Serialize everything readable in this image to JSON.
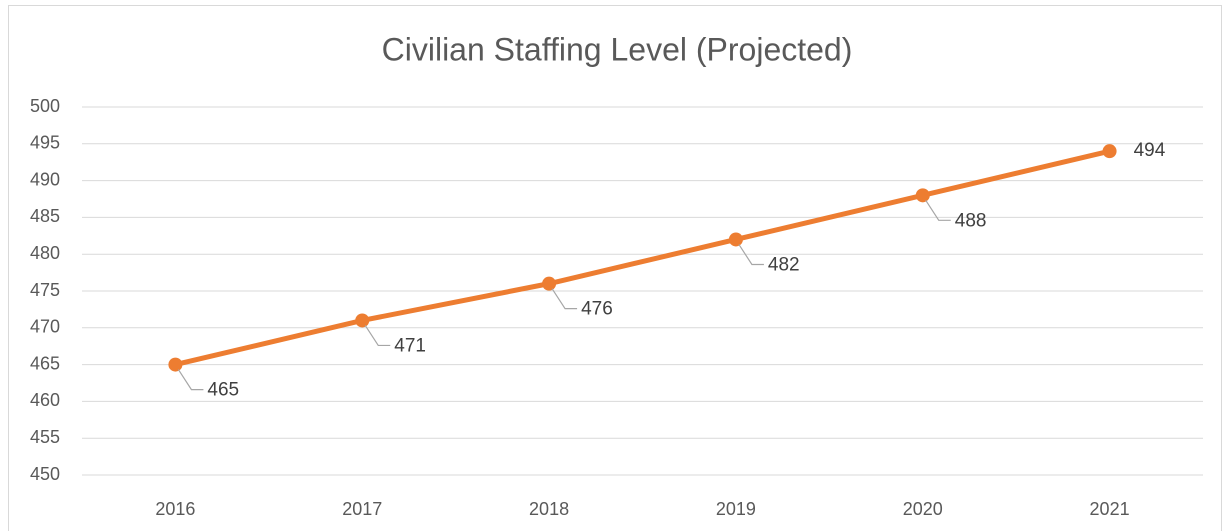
{
  "chart_data": {
    "type": "line",
    "title": "Civilian Staffing Level (Projected)",
    "categories": [
      "2016",
      "2017",
      "2018",
      "2019",
      "2020",
      "2021"
    ],
    "series": [
      {
        "name": "Civilian Staffing Level",
        "color": "#ed7d31",
        "values": [
          465,
          471,
          476,
          482,
          488,
          494
        ]
      }
    ],
    "ylim": [
      450,
      500
    ],
    "yticks": [
      450,
      455,
      460,
      465,
      470,
      475,
      480,
      485,
      490,
      495,
      500
    ],
    "grid": true
  }
}
